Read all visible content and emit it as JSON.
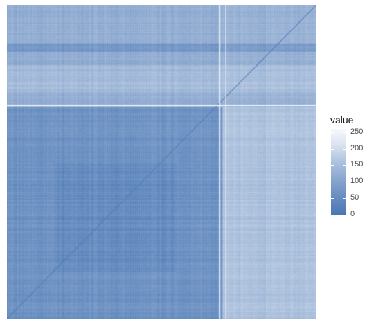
{
  "chart_data": {
    "type": "heatmap",
    "title": "",
    "xlabel": "",
    "ylabel": "",
    "grid": false,
    "legend_position": "right",
    "legend": {
      "title": "value",
      "ticks": [
        0,
        50,
        100,
        150,
        200,
        250
      ],
      "range": [
        0,
        260
      ],
      "colors": [
        "#4a77b4",
        "#f7f9fc"
      ]
    },
    "matrix_description": {
      "diagonal": "low (dark) diagonal line from bottom-left to top-right",
      "blocks": [
        {
          "region": "lower-left",
          "approx_value": 60
        },
        {
          "region": "upper-left",
          "approx_value": 120
        },
        {
          "region": "upper-right",
          "approx_value": 110
        },
        {
          "region": "lower-right",
          "approx_value": 150
        }
      ]
    }
  }
}
